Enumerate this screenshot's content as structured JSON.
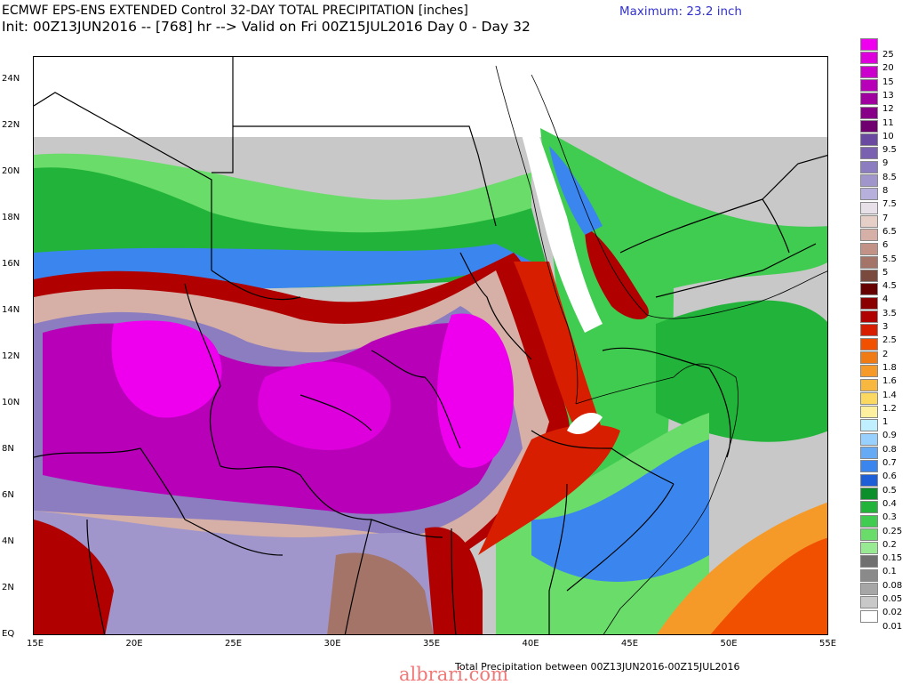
{
  "header": {
    "title_line1": "ECMWF EPS-ENS EXTENDED Control 32-DAY TOTAL PRECIPITATION [inches]",
    "title_line2": "Init: 00Z13JUN2016 -- [768] hr --> Valid on Fri 00Z15JUL2016  Day 0 - Day 32",
    "maximum": "Maximum: 23.2 inch"
  },
  "axes": {
    "lat_labels": [
      "24N",
      "22N",
      "20N",
      "18N",
      "16N",
      "14N",
      "12N",
      "10N",
      "8N",
      "6N",
      "4N",
      "2N",
      "EQ"
    ],
    "lon_labels": [
      "15E",
      "20E",
      "25E",
      "30E",
      "35E",
      "40E",
      "45E",
      "50E",
      "55E"
    ]
  },
  "legend": {
    "labels": [
      "25",
      "20",
      "15",
      "13",
      "12",
      "11",
      "10",
      "9.5",
      "9",
      "8.5",
      "8",
      "7.5",
      "7",
      "6.5",
      "6",
      "5.5",
      "5",
      "4.5",
      "4",
      "3.5",
      "3",
      "2.5",
      "2",
      "1.8",
      "1.6",
      "1.4",
      "1.2",
      "1",
      "0.9",
      "0.8",
      "0.7",
      "0.6",
      "0.5",
      "0.4",
      "0.3",
      "0.25",
      "0.2",
      "0.15",
      "0.1",
      "0.08",
      "0.05",
      "0.02",
      "0.01"
    ],
    "colors": [
      "#ee00ee",
      "#dd00dd",
      "#cc00cc",
      "#b800b8",
      "#a000a0",
      "#880088",
      "#700070",
      "#6a4aa0",
      "#7a62b0",
      "#8c7cc0",
      "#a096cc",
      "#b8b0dc",
      "#e8e0e8",
      "#e6cfc6",
      "#d6b0a6",
      "#c29286",
      "#a47468",
      "#7a4a3e",
      "#660000",
      "#8a0000",
      "#b00000",
      "#d81e00",
      "#f05000",
      "#f07a14",
      "#f59a28",
      "#f8b840",
      "#fbd860",
      "#fff0a0",
      "#c0f0ff",
      "#98d0ff",
      "#66aaf5",
      "#3a86ee",
      "#1e5fd8",
      "#0a8f2a",
      "#22b43a",
      "#40cc50",
      "#6adc6a",
      "#98ea92",
      "#707070",
      "#8a8a8a",
      "#a6a6a6",
      "#c8c8c8",
      "#ffffff"
    ]
  },
  "footer": "Total Precipitation between 00Z13JUN2016-00Z15JUL2016",
  "watermark": "albrari.com"
}
